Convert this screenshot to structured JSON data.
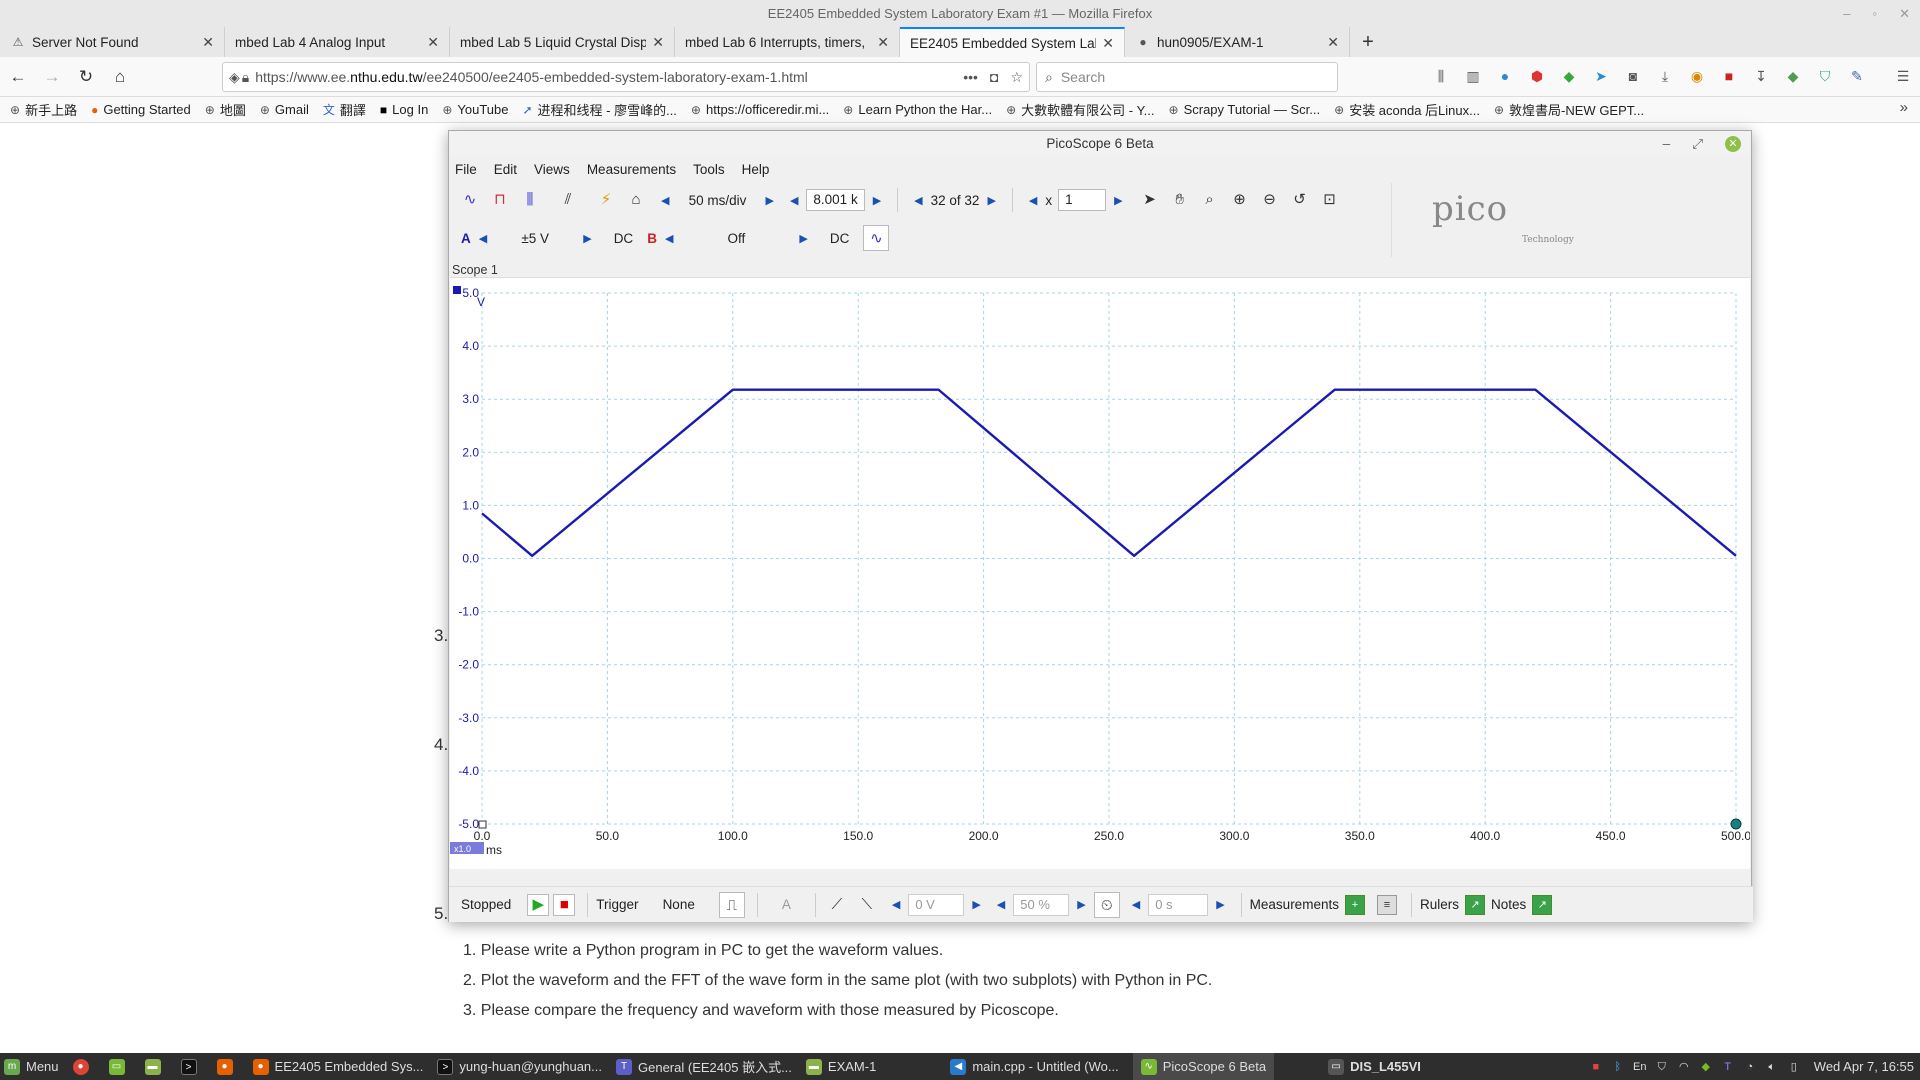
{
  "firefox": {
    "window_title": "EE2405 Embedded System Laboratory Exam #1 — Mozilla Firefox",
    "tabs": [
      {
        "label": "Server Not Found",
        "icon": "warning-icon"
      },
      {
        "label": "mbed Lab 4 Analog Input",
        "icon": "page-icon"
      },
      {
        "label": "mbed Lab 5 Liquid Crystal Disp",
        "icon": "page-icon"
      },
      {
        "label": "mbed Lab 6 Interrupts, timers,",
        "icon": "page-icon"
      },
      {
        "label": "EE2405 Embedded System Lab",
        "icon": "page-icon"
      },
      {
        "label": "hun0905/EXAM-1",
        "icon": "github-icon"
      }
    ],
    "url_prefix": "https://www.ee.",
    "url_domain": "nthu.edu.tw",
    "url_suffix": "/ee240500/ee2405-embedded-system-laboratory-exam-1.html",
    "search_placeholder": "Search",
    "bookmarks": [
      "新手上路",
      "Getting Started",
      "地圖",
      "Gmail",
      "翻譯",
      "Log In",
      "YouTube",
      "进程和线程 - 廖雪峰的...",
      "https://officeredir.mi...",
      "Learn Python the Har...",
      "大數軟體有限公司 - Y...",
      "Scrapy Tutorial — Scr...",
      "安装 aconda 后Linux...",
      "敦煌書局-NEW GEPT..."
    ]
  },
  "page": {
    "num_3": "3.",
    "num_4": "4.",
    "num_5": "5.",
    "list": [
      "1. Please write a Python program in PC to get the waveform values.",
      "2. Plot the waveform and the FFT of the wave form in the same plot (with two subplots) with Python in PC.",
      "3. Please compare the frequency and waveform with those measured by Picoscope."
    ]
  },
  "picoscope": {
    "title": "PicoScope 6 Beta",
    "menu": [
      "File",
      "Edit",
      "Views",
      "Measurements",
      "Tools",
      "Help"
    ],
    "timebase": "50 ms/div",
    "samples": "8.001 k",
    "buffer": "32 of 32",
    "zoom_x_label": "x",
    "zoom_x": "1",
    "channel_a": {
      "label": "A",
      "range": "±5 V",
      "coupling": "DC",
      "color": "#1a1ab3"
    },
    "channel_b": {
      "label": "B",
      "range": "Off",
      "coupling": "DC",
      "color": "#cc2222"
    },
    "logo_text": "pico",
    "logo_sub": "Technology",
    "scope_tab": "Scope 1",
    "status": "Stopped",
    "trigger_label": "Trigger",
    "trigger_mode": "None",
    "trigger_channel": "A",
    "threshold": "0 V",
    "pretrigger": "50 %",
    "delay": "0 s",
    "measurements_label": "Measurements",
    "rulers_label": "Rulers",
    "notes_label": "Notes",
    "x_scale_badge": "x1.0"
  },
  "chart_data": {
    "type": "line",
    "xlabel": "ms",
    "ylabel": "V",
    "xlim": [
      0,
      500
    ],
    "ylim": [
      -5,
      5
    ],
    "x_ticks": [
      "0.0",
      "50.0",
      "100.0",
      "150.0",
      "200.0",
      "250.0",
      "300.0",
      "350.0",
      "400.0",
      "450.0",
      "500.0"
    ],
    "y_ticks": [
      "5.0",
      "4.0",
      "3.0",
      "2.0",
      "1.0",
      "0.0",
      "-1.0",
      "-2.0",
      "-3.0",
      "-4.0",
      "-5.0"
    ],
    "grid": true,
    "series": [
      {
        "color": "#1a1ab3",
        "x": [
          0,
          20,
          100,
          182,
          260,
          340,
          420,
          500
        ],
        "y": [
          0.85,
          0.05,
          3.18,
          3.18,
          0.05,
          3.18,
          3.18,
          0.05
        ]
      }
    ]
  },
  "taskbar": {
    "menu_label": "Menu",
    "items": [
      "EE2405 Embedded Sys...",
      "yung-huan@yunghuan...",
      "General (EE2405 嵌入式...",
      "EXAM-1",
      "main.cpp - Untitled (Wo...",
      "PicoScope 6 Beta",
      "DIS_L455VI"
    ],
    "clock": "Wed Apr 7, 16:55"
  }
}
